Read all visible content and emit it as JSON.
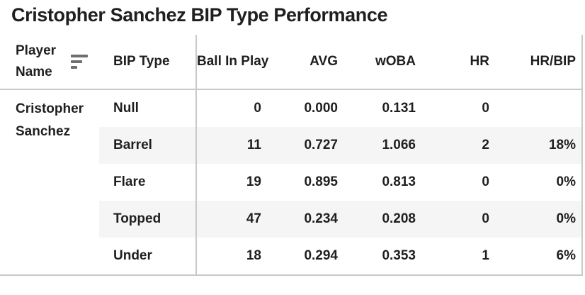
{
  "title": "Cristopher Sanchez BIP Type Performance",
  "chart_data": {
    "type": "table",
    "title": "Cristopher Sanchez BIP Type Performance",
    "columns": [
      "Player Name",
      "BIP Type",
      "Ball In Play",
      "AVG",
      "wOBA",
      "HR",
      "HR/BIP"
    ],
    "player": "Cristopher Sanchez",
    "sort": {
      "column": "Player Name",
      "order": "descending",
      "icon": "sort-descending-bars"
    },
    "rows": [
      {
        "bip_type": "Null",
        "ball_in_play": "0",
        "avg": "0.000",
        "woba": "0.131",
        "hr": "0",
        "hr_bip": ""
      },
      {
        "bip_type": "Barrel",
        "ball_in_play": "11",
        "avg": "0.727",
        "woba": "1.066",
        "hr": "2",
        "hr_bip": "18%"
      },
      {
        "bip_type": "Flare",
        "ball_in_play": "19",
        "avg": "0.895",
        "woba": "0.813",
        "hr": "0",
        "hr_bip": "0%"
      },
      {
        "bip_type": "Topped",
        "ball_in_play": "47",
        "avg": "0.234",
        "woba": "0.208",
        "hr": "0",
        "hr_bip": "0%"
      },
      {
        "bip_type": "Under",
        "ball_in_play": "18",
        "avg": "0.294",
        "woba": "0.353",
        "hr": "1",
        "hr_bip": "6%"
      }
    ],
    "layout": {
      "striped_rows": [
        "Barrel",
        "Topped"
      ],
      "stripe_color": "#f5f5f5",
      "border_color": "#c9c9c9",
      "text_color": "#1f1f1f",
      "sort_icon_color": "#6e6e6e"
    }
  }
}
